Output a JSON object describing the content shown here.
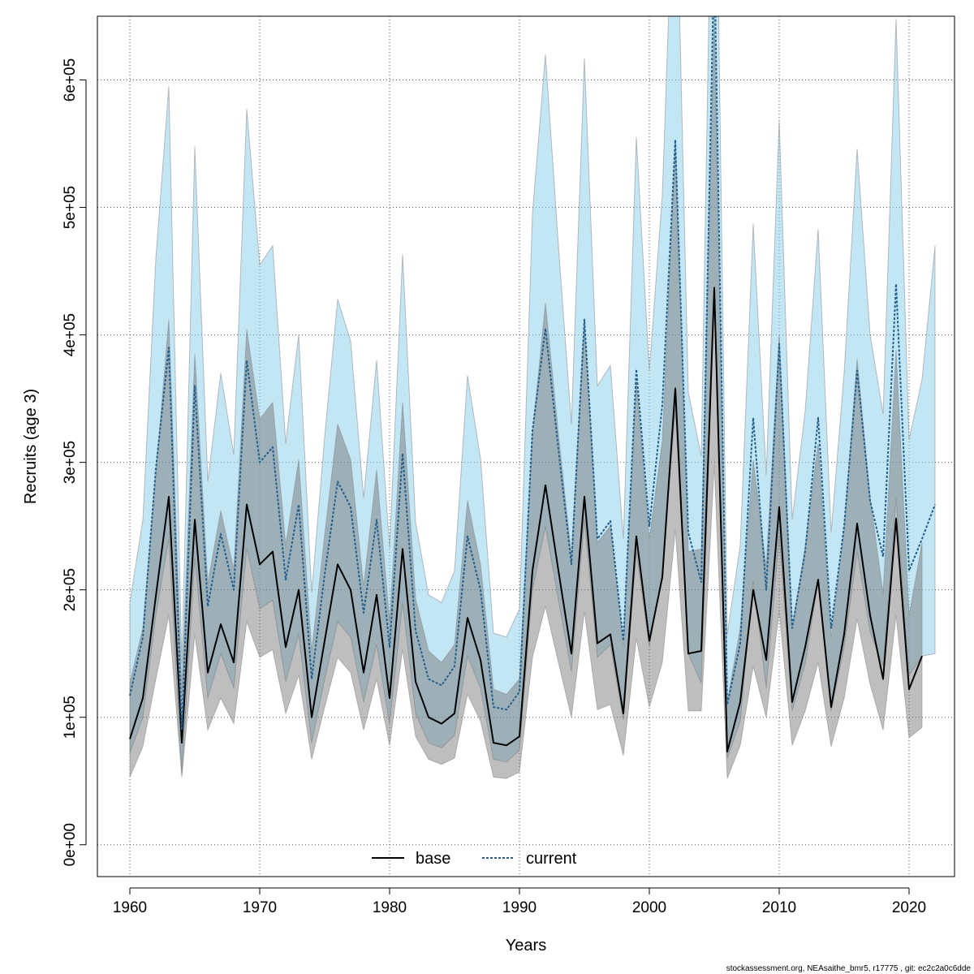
{
  "chart_data": {
    "type": "line",
    "title": "",
    "xlabel": "Years",
    "ylabel": "Recruits (age 3)",
    "xlim": [
      1957.5,
      2023.5
    ],
    "ylim": [
      -25000,
      650000
    ],
    "grid": true,
    "legend_placement": "bottom",
    "x_ticks": [
      1960,
      1970,
      1980,
      1990,
      2000,
      2010,
      2020
    ],
    "x_tick_labels": [
      "1960",
      "1970",
      "1980",
      "1990",
      "2000",
      "2010",
      "2020"
    ],
    "y_ticks": [
      0,
      100000,
      200000,
      300000,
      400000,
      500000,
      600000
    ],
    "y_tick_labels": [
      "0e+00",
      "1e+05",
      "2e+05",
      "3e+05",
      "4e+05",
      "5e+05",
      "6e+05"
    ],
    "footer": "stockassessment.org, NEAsaithe_bmr5, r17775 , git: ec2c2a0c6dde",
    "series": [
      {
        "name": "base",
        "color": "#000000",
        "band_color": "#6e6e6e",
        "line_style": "solid",
        "x": [
          1960,
          1961,
          1962,
          1963,
          1964,
          1965,
          1966,
          1967,
          1968,
          1969,
          1970,
          1971,
          1972,
          1973,
          1974,
          1975,
          1976,
          1977,
          1978,
          1979,
          1980,
          1981,
          1982,
          1983,
          1984,
          1985,
          1986,
          1987,
          1988,
          1989,
          1990,
          1991,
          1992,
          1993,
          1994,
          1995,
          1996,
          1997,
          1998,
          1999,
          2000,
          2001,
          2002,
          2003,
          2004,
          2005,
          2006,
          2007,
          2008,
          2009,
          2010,
          2011,
          2012,
          2013,
          2014,
          2015,
          2016,
          2017,
          2018,
          2019,
          2020,
          2021
        ],
        "values": [
          83000,
          115000,
          195000,
          273000,
          80000,
          255000,
          135000,
          173000,
          143000,
          267000,
          220000,
          230000,
          155000,
          200000,
          100000,
          160000,
          220000,
          200000,
          135000,
          196000,
          115000,
          232000,
          128000,
          100000,
          95000,
          103000,
          178000,
          145000,
          80000,
          78000,
          85000,
          215000,
          282000,
          215000,
          150000,
          273000,
          158000,
          165000,
          103000,
          242000,
          160000,
          210000,
          358000,
          150000,
          152000,
          437000,
          73000,
          112000,
          200000,
          145000,
          265000,
          112000,
          155000,
          208000,
          108000,
          165000,
          252000,
          180000,
          130000,
          256000,
          122000,
          148000
        ],
        "lower": [
          53000,
          77000,
          130000,
          180000,
          53000,
          165000,
          90000,
          115000,
          95000,
          175000,
          147000,
          153000,
          103000,
          133000,
          67000,
          108000,
          147000,
          135000,
          90000,
          130000,
          78000,
          153000,
          85000,
          67000,
          63000,
          68000,
          118000,
          97000,
          53000,
          52000,
          57000,
          147000,
          187000,
          143000,
          100000,
          183000,
          106000,
          110000,
          70000,
          162000,
          108000,
          143000,
          247000,
          105000,
          105000,
          298000,
          52000,
          78000,
          140000,
          100000,
          183000,
          78000,
          105000,
          143000,
          77000,
          115000,
          177000,
          126000,
          90000,
          180000,
          84000,
          92000
        ],
        "upper": [
          127000,
          170000,
          290000,
          412000,
          122000,
          385000,
          205000,
          262000,
          216000,
          404000,
          334000,
          347000,
          235000,
          302000,
          152000,
          243000,
          330000,
          302000,
          203000,
          294000,
          175000,
          347000,
          193000,
          152000,
          143000,
          157000,
          270000,
          220000,
          122000,
          118000,
          130000,
          322000,
          425000,
          322000,
          227000,
          410000,
          237000,
          250000,
          156000,
          364000,
          240000,
          317000,
          550000,
          230000,
          232000,
          650000,
          112000,
          170000,
          302000,
          218000,
          400000,
          170000,
          234000,
          315000,
          163000,
          248000,
          381000,
          272000,
          197000,
          388000,
          180000,
          237000
        ]
      },
      {
        "name": "current",
        "color": "#1f5f8f",
        "band_color": "#87ceeb",
        "line_style": "dotted",
        "x": [
          1960,
          1961,
          1962,
          1963,
          1964,
          1965,
          1966,
          1967,
          1968,
          1969,
          1970,
          1971,
          1972,
          1973,
          1974,
          1975,
          1976,
          1977,
          1978,
          1979,
          1980,
          1981,
          1982,
          1983,
          1984,
          1985,
          1986,
          1987,
          1988,
          1989,
          1990,
          1991,
          1992,
          1993,
          1994,
          1995,
          1996,
          1997,
          1998,
          1999,
          2000,
          2001,
          2002,
          2003,
          2004,
          2005,
          2006,
          2007,
          2008,
          2009,
          2010,
          2011,
          2012,
          2013,
          2014,
          2015,
          2016,
          2017,
          2018,
          2019,
          2020,
          2021,
          2022
        ],
        "values": [
          117000,
          163000,
          295000,
          390000,
          90000,
          360000,
          187000,
          244000,
          200000,
          380000,
          300000,
          312000,
          208000,
          267000,
          130000,
          212000,
          285000,
          265000,
          182000,
          255000,
          155000,
          307000,
          168000,
          130000,
          125000,
          140000,
          242000,
          200000,
          108000,
          106000,
          120000,
          325000,
          405000,
          310000,
          220000,
          412000,
          240000,
          254000,
          160000,
          373000,
          250000,
          345000,
          553000,
          245000,
          206000,
          700000,
          110000,
          158000,
          335000,
          200000,
          393000,
          170000,
          230000,
          335000,
          170000,
          250000,
          372000,
          270000,
          226000,
          440000,
          215000,
          240000,
          267000
        ],
        "lower": [
          72000,
          100000,
          180000,
          240000,
          56000,
          225000,
          115000,
          150000,
          123000,
          233000,
          185000,
          192000,
          128000,
          165000,
          80000,
          130000,
          175000,
          163000,
          112000,
          157000,
          95000,
          190000,
          103000,
          80000,
          76000,
          86000,
          148000,
          123000,
          67000,
          65000,
          74000,
          200000,
          250000,
          192000,
          136000,
          255000,
          147000,
          157000,
          98000,
          230000,
          155000,
          213000,
          342000,
          150000,
          127000,
          430000,
          68000,
          97000,
          207000,
          123000,
          242000,
          105000,
          142000,
          207000,
          105000,
          155000,
          230000,
          167000,
          140000,
          272000,
          133000,
          148000,
          150000
        ],
        "upper": [
          190000,
          255000,
          460000,
          595000,
          142000,
          548000,
          285000,
          370000,
          306000,
          577000,
          455000,
          470000,
          315000,
          400000,
          198000,
          320000,
          428000,
          395000,
          272000,
          380000,
          233000,
          463000,
          253000,
          196000,
          190000,
          215000,
          368000,
          303000,
          166000,
          163000,
          185000,
          495000,
          620000,
          470000,
          330000,
          617000,
          360000,
          376000,
          240000,
          555000,
          372000,
          510000,
          800000,
          355000,
          305000,
          900000,
          165000,
          235000,
          487000,
          290000,
          568000,
          255000,
          340000,
          483000,
          245000,
          370000,
          546000,
          400000,
          338000,
          648000,
          318000,
          365000,
          470000
        ]
      }
    ]
  }
}
